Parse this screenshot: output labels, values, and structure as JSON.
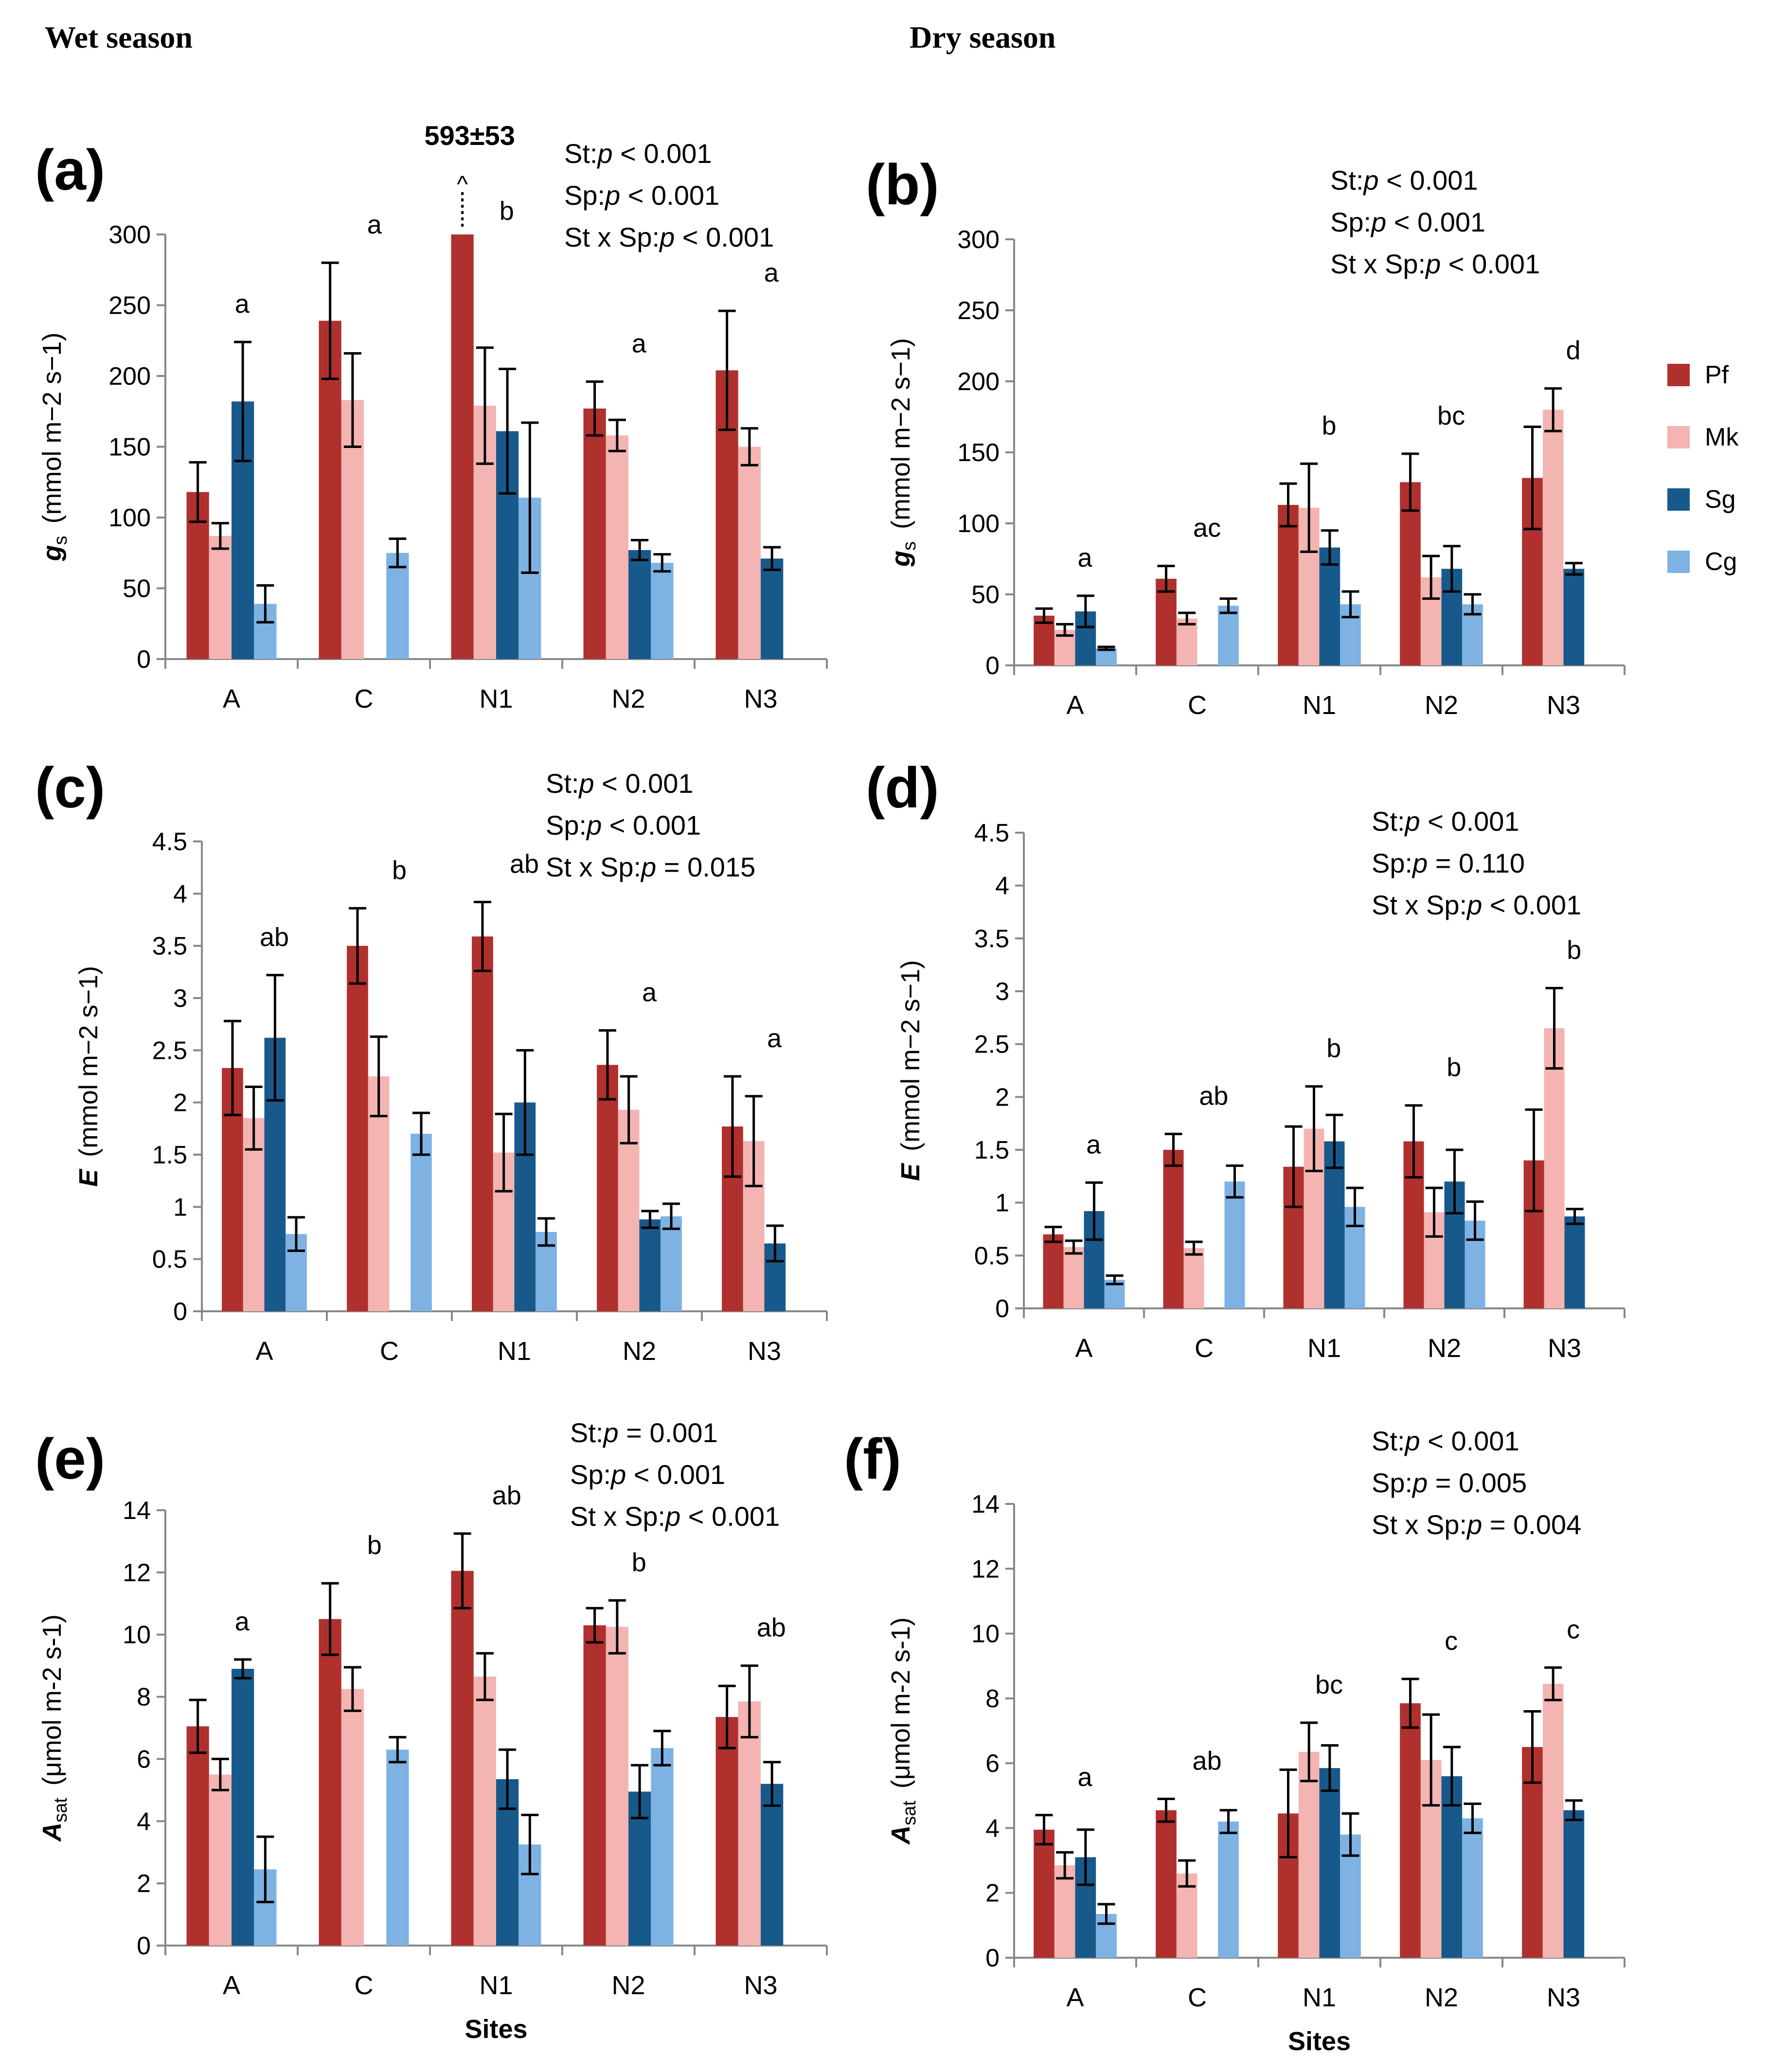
{
  "season_titles": {
    "wet": "Wet season",
    "dry": "Dry season"
  },
  "legend": [
    {
      "name": "Pf",
      "color": "#b0302e"
    },
    {
      "name": "Mk",
      "color": "#f3b4b2"
    },
    {
      "name": "Sg",
      "color": "#18598b"
    },
    {
      "name": "Cg",
      "color": "#7db2e3"
    }
  ],
  "annotation_a": {
    "text": "593±53",
    "arrow": "^"
  },
  "chart_data": [
    {
      "id": "a",
      "type": "bar",
      "label": "(a)",
      "ylabel_var": "g",
      "ylabel_sub": "s",
      "ylabel_unit": "(mmol m−2 s−1)",
      "ylim": [
        0,
        300
      ],
      "yticks": [
        "0",
        "50",
        "100",
        "150",
        "200",
        "250",
        "300"
      ],
      "categories": [
        "A",
        "C",
        "N1",
        "N2",
        "N3"
      ],
      "series": [
        {
          "name": "Pf",
          "values": [
            118,
            239,
            300,
            177,
            204
          ],
          "errors": [
            21,
            41,
            0,
            19,
            42
          ]
        },
        {
          "name": "Mk",
          "values": [
            87,
            183,
            179,
            158,
            150
          ],
          "errors": [
            9,
            33,
            41,
            11,
            13
          ]
        },
        {
          "name": "Sg",
          "values": [
            182,
            null,
            161,
            77,
            71
          ],
          "errors": [
            42,
            null,
            44,
            7,
            8
          ]
        },
        {
          "name": "Cg",
          "values": [
            39,
            75,
            114,
            68,
            null
          ],
          "errors": [
            13,
            10,
            53,
            6,
            null
          ]
        }
      ],
      "letters": [
        "a",
        "a",
        "b",
        "a",
        "a"
      ],
      "stats": [
        {
          "label": "St:",
          "p": "p",
          "rest": " < 0.001"
        },
        {
          "label": "Sp:",
          "p": "p",
          "rest": " < 0.001"
        },
        {
          "label": "St x Sp:",
          "p": "p",
          "rest": " < 0.001"
        }
      ],
      "xlabel": ""
    },
    {
      "id": "b",
      "type": "bar",
      "label": "(b)",
      "ylabel_var": "g",
      "ylabel_sub": "s",
      "ylabel_unit": "(mmol m−2 s−1)",
      "ylim": [
        0,
        300
      ],
      "yticks": [
        "0",
        "50",
        "100",
        "150",
        "200",
        "250",
        "300"
      ],
      "categories": [
        "A",
        "C",
        "N1",
        "N2",
        "N3"
      ],
      "series": [
        {
          "name": "Pf",
          "values": [
            35,
            61,
            113,
            129,
            132
          ],
          "errors": [
            5,
            9,
            15,
            20,
            36
          ]
        },
        {
          "name": "Mk",
          "values": [
            25,
            33,
            111,
            62,
            180
          ],
          "errors": [
            4,
            4,
            31,
            15,
            15
          ]
        },
        {
          "name": "Sg",
          "values": [
            38,
            null,
            83,
            68,
            68
          ],
          "errors": [
            11,
            null,
            12,
            16,
            4
          ]
        },
        {
          "name": "Cg",
          "values": [
            12,
            42,
            43,
            43,
            null
          ],
          "errors": [
            1,
            5,
            9,
            7,
            null
          ]
        }
      ],
      "letters": [
        "a",
        "ac",
        "b",
        "bc",
        "d"
      ],
      "stats": [
        {
          "label": "St:",
          "p": "p",
          "rest": " < 0.001"
        },
        {
          "label": "Sp:",
          "p": "p",
          "rest": " < 0.001"
        },
        {
          "label": "St x Sp:",
          "p": "p",
          "rest": " < 0.001"
        }
      ],
      "xlabel": ""
    },
    {
      "id": "c",
      "type": "bar",
      "label": "(c)",
      "ylabel_var": "E",
      "ylabel_sub": "",
      "ylabel_unit": "(mmol m−2 s−1)",
      "ylim": [
        0,
        4.5
      ],
      "yticks": [
        "0",
        "0.5",
        "1",
        "1.5",
        "2",
        "2.5",
        "3",
        "3.5",
        "4",
        "4.5"
      ],
      "categories": [
        "A",
        "C",
        "N1",
        "N2",
        "N3"
      ],
      "series": [
        {
          "name": "Pf",
          "values": [
            2.33,
            3.5,
            3.59,
            2.36,
            1.77
          ],
          "errors": [
            0.45,
            0.36,
            0.33,
            0.33,
            0.48
          ]
        },
        {
          "name": "Mk",
          "values": [
            1.85,
            2.25,
            1.52,
            1.93,
            1.63
          ],
          "errors": [
            0.3,
            0.38,
            0.37,
            0.32,
            0.43
          ]
        },
        {
          "name": "Sg",
          "values": [
            2.62,
            null,
            2.0,
            0.88,
            0.65
          ],
          "errors": [
            0.6,
            null,
            0.5,
            0.08,
            0.17
          ]
        },
        {
          "name": "Cg",
          "values": [
            0.74,
            1.7,
            0.76,
            0.91,
            null
          ],
          "errors": [
            0.16,
            0.2,
            0.13,
            0.12,
            null
          ]
        }
      ],
      "letters": [
        "ab",
        "b",
        "ab",
        "a",
        "a"
      ],
      "stats": [
        {
          "label": "St:",
          "p": "p",
          "rest": " < 0.001"
        },
        {
          "label": "Sp:",
          "p": "p",
          "rest": " < 0.001"
        },
        {
          "label": "St x Sp:",
          "p": "p",
          "rest": " = 0.015"
        }
      ],
      "xlabel": ""
    },
    {
      "id": "d",
      "type": "bar",
      "label": "(d)",
      "ylabel_var": "E",
      "ylabel_sub": "",
      "ylabel_unit": "(mmol m−2 s−1)",
      "ylim": [
        0,
        4.5
      ],
      "yticks": [
        "0",
        "0.5",
        "1",
        "1.5",
        "2",
        "2.5",
        "3",
        "3.5",
        "4",
        "4.5"
      ],
      "categories": [
        "A",
        "C",
        "N1",
        "N2",
        "N3"
      ],
      "series": [
        {
          "name": "Pf",
          "values": [
            0.7,
            1.5,
            1.34,
            1.58,
            1.4
          ],
          "errors": [
            0.07,
            0.15,
            0.38,
            0.34,
            0.48
          ]
        },
        {
          "name": "Mk",
          "values": [
            0.58,
            0.57,
            1.7,
            0.91,
            2.65
          ],
          "errors": [
            0.06,
            0.06,
            0.4,
            0.23,
            0.38
          ]
        },
        {
          "name": "Sg",
          "values": [
            0.92,
            null,
            1.58,
            1.2,
            0.87
          ],
          "errors": [
            0.27,
            null,
            0.25,
            0.3,
            0.07
          ]
        },
        {
          "name": "Cg",
          "values": [
            0.27,
            1.2,
            0.96,
            0.83,
            null
          ],
          "errors": [
            0.04,
            0.15,
            0.18,
            0.18,
            null
          ]
        }
      ],
      "letters": [
        "a",
        "ab",
        "b",
        "b",
        "b"
      ],
      "stats": [
        {
          "label": "St:",
          "p": "p",
          "rest": " < 0.001"
        },
        {
          "label": "Sp:",
          "p": "p",
          "rest": " = 0.110"
        },
        {
          "label": "St x Sp:",
          "p": "p",
          "rest": " < 0.001"
        }
      ],
      "xlabel": ""
    },
    {
      "id": "e",
      "type": "bar",
      "label": "(e)",
      "ylabel_var": "A",
      "ylabel_sub": "sat",
      "ylabel_unit": "(μmol m-2 s-1)",
      "ylim": [
        0,
        14
      ],
      "yticks": [
        "0",
        "2",
        "4",
        "6",
        "8",
        "10",
        "12",
        "14"
      ],
      "categories": [
        "A",
        "C",
        "N1",
        "N2",
        "N3"
      ],
      "series": [
        {
          "name": "Pf",
          "values": [
            7.05,
            10.5,
            12.05,
            10.3,
            7.35
          ],
          "errors": [
            0.85,
            1.15,
            1.2,
            0.55,
            1.0
          ]
        },
        {
          "name": "Mk",
          "values": [
            5.5,
            8.25,
            8.65,
            10.25,
            7.85
          ],
          "errors": [
            0.5,
            0.7,
            0.75,
            0.85,
            1.15
          ]
        },
        {
          "name": "Sg",
          "values": [
            8.9,
            null,
            5.35,
            4.95,
            5.2
          ],
          "errors": [
            0.3,
            null,
            0.95,
            0.85,
            0.7
          ]
        },
        {
          "name": "Cg",
          "values": [
            2.45,
            6.3,
            3.25,
            6.35,
            null
          ],
          "errors": [
            1.05,
            0.4,
            0.95,
            0.55,
            null
          ]
        }
      ],
      "letters": [
        "a",
        "b",
        "ab",
        "b",
        "ab"
      ],
      "stats": [
        {
          "label": "St:",
          "p": "p",
          "rest": " = 0.001"
        },
        {
          "label": "Sp:",
          "p": "p",
          "rest": " < 0.001"
        },
        {
          "label": "St x Sp:",
          "p": "p",
          "rest": " < 0.001"
        }
      ],
      "xlabel": "Sites"
    },
    {
      "id": "f",
      "type": "bar",
      "label": "(f)",
      "ylabel_var": "A",
      "ylabel_sub": "sat",
      "ylabel_unit": "(μmol m-2 s-1)",
      "ylim": [
        0,
        14
      ],
      "yticks": [
        "0",
        "2",
        "4",
        "6",
        "8",
        "10",
        "12",
        "14"
      ],
      "categories": [
        "A",
        "C",
        "N1",
        "N2",
        "N3"
      ],
      "series": [
        {
          "name": "Pf",
          "values": [
            3.95,
            4.55,
            4.45,
            7.85,
            6.5
          ],
          "errors": [
            0.45,
            0.35,
            1.35,
            0.75,
            1.1
          ]
        },
        {
          "name": "Mk",
          "values": [
            2.85,
            2.6,
            6.35,
            6.1,
            8.45
          ],
          "errors": [
            0.4,
            0.4,
            0.9,
            1.4,
            0.5
          ]
        },
        {
          "name": "Sg",
          "values": [
            3.1,
            null,
            5.85,
            5.6,
            4.55
          ],
          "errors": [
            0.85,
            null,
            0.7,
            0.9,
            0.3
          ]
        },
        {
          "name": "Cg",
          "values": [
            1.35,
            4.2,
            3.8,
            4.3,
            null
          ],
          "errors": [
            0.3,
            0.35,
            0.65,
            0.45,
            null
          ]
        }
      ],
      "letters": [
        "a",
        "ab",
        "bc",
        "c",
        "c"
      ],
      "stats": [
        {
          "label": "St:",
          "p": "p",
          "rest": " < 0.001"
        },
        {
          "label": "Sp:",
          "p": "p",
          "rest": " = 0.005"
        },
        {
          "label": "St x Sp:",
          "p": "p",
          "rest": " = 0.004"
        }
      ],
      "xlabel": "Sites"
    }
  ]
}
